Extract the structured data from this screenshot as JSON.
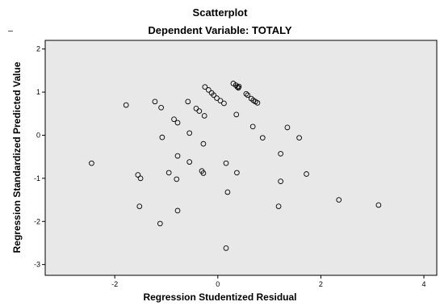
{
  "chart_data": {
    "type": "scatter",
    "title": "Scatterplot",
    "subtitle": "Dependent Variable: TOTALY",
    "xlabel": "Regression Studentized Residual",
    "ylabel": "Regression Standardized Predicted Value",
    "xlim": [
      -3.35,
      4.25
    ],
    "ylim": [
      -3.25,
      2.2
    ],
    "xticks": [
      -2,
      0,
      2,
      4
    ],
    "yticks": [
      -3,
      -2,
      -1,
      0,
      1,
      2
    ],
    "grid": false,
    "background": "#e8e8e8",
    "marker_color": "#000000",
    "marker": "open-circle",
    "points": [
      {
        "x": -2.45,
        "y": -0.65
      },
      {
        "x": -1.78,
        "y": 0.7
      },
      {
        "x": -1.55,
        "y": -0.92
      },
      {
        "x": -1.5,
        "y": -1.0
      },
      {
        "x": -1.52,
        "y": -1.65
      },
      {
        "x": -1.22,
        "y": 0.78
      },
      {
        "x": -1.1,
        "y": 0.64
      },
      {
        "x": -1.08,
        "y": -0.05
      },
      {
        "x": -1.12,
        "y": -2.05
      },
      {
        "x": -0.95,
        "y": -0.87
      },
      {
        "x": -0.85,
        "y": 0.37
      },
      {
        "x": -0.78,
        "y": 0.29
      },
      {
        "x": -0.78,
        "y": -0.48
      },
      {
        "x": -0.8,
        "y": -1.02
      },
      {
        "x": -0.78,
        "y": -1.75
      },
      {
        "x": -0.58,
        "y": 0.78
      },
      {
        "x": -0.55,
        "y": 0.05
      },
      {
        "x": -0.55,
        "y": -0.62
      },
      {
        "x": -0.42,
        "y": 0.62
      },
      {
        "x": -0.36,
        "y": 0.56
      },
      {
        "x": -0.31,
        "y": -0.83
      },
      {
        "x": -0.28,
        "y": -0.88
      },
      {
        "x": -0.28,
        "y": -0.2
      },
      {
        "x": -0.26,
        "y": 0.45
      },
      {
        "x": -0.25,
        "y": 1.12
      },
      {
        "x": -0.18,
        "y": 1.05
      },
      {
        "x": -0.12,
        "y": 0.98
      },
      {
        "x": -0.08,
        "y": 0.93
      },
      {
        "x": -0.02,
        "y": 0.86
      },
      {
        "x": 0.05,
        "y": 0.8
      },
      {
        "x": 0.12,
        "y": 0.74
      },
      {
        "x": 0.16,
        "y": -0.65
      },
      {
        "x": 0.19,
        "y": -1.32
      },
      {
        "x": 0.16,
        "y": -2.62
      },
      {
        "x": 0.3,
        "y": 1.2
      },
      {
        "x": 0.35,
        "y": 1.16
      },
      {
        "x": 0.38,
        "y": 1.12
      },
      {
        "x": 0.4,
        "y": 1.1
      },
      {
        "x": 0.41,
        "y": 1.13
      },
      {
        "x": 0.36,
        "y": 0.48
      },
      {
        "x": 0.37,
        "y": -0.87
      },
      {
        "x": 0.55,
        "y": 0.96
      },
      {
        "x": 0.58,
        "y": 0.93
      },
      {
        "x": 0.65,
        "y": 0.85
      },
      {
        "x": 0.69,
        "y": 0.81
      },
      {
        "x": 0.73,
        "y": 0.78
      },
      {
        "x": 0.77,
        "y": 0.75
      },
      {
        "x": 0.68,
        "y": 0.2
      },
      {
        "x": 0.87,
        "y": -0.06
      },
      {
        "x": 1.18,
        "y": -1.65
      },
      {
        "x": 1.22,
        "y": -0.43
      },
      {
        "x": 1.22,
        "y": -1.07
      },
      {
        "x": 1.35,
        "y": 0.18
      },
      {
        "x": 1.58,
        "y": -0.06
      },
      {
        "x": 1.72,
        "y": -0.9
      },
      {
        "x": 2.35,
        "y": -1.5
      },
      {
        "x": 3.12,
        "y": -1.62
      }
    ]
  }
}
